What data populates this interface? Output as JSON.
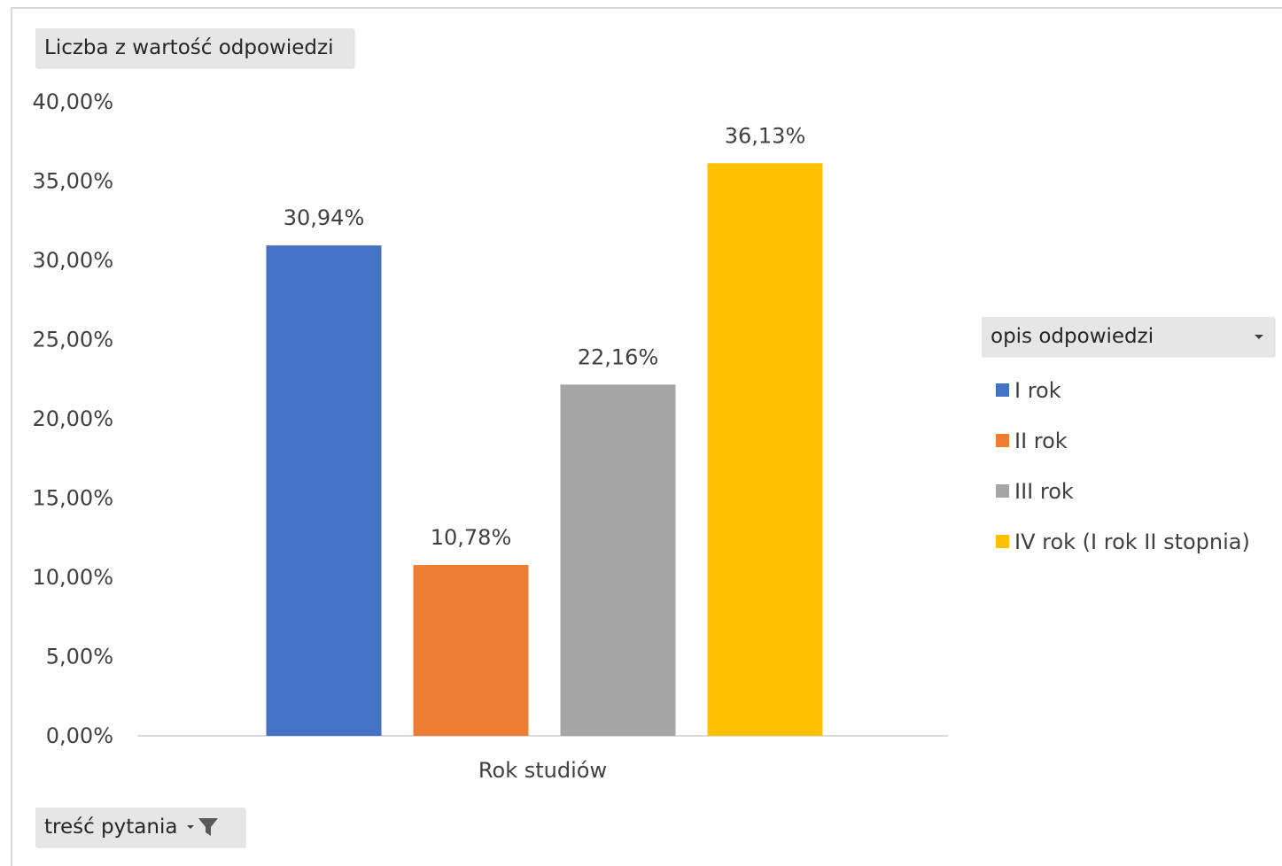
{
  "values_field": {
    "label": "Liczba z wartość odpowiedzi"
  },
  "filter_field": {
    "label": "treść pytania"
  },
  "legend": {
    "field_label": "opis odpowiedzi",
    "items": [
      {
        "label": "I rok",
        "color": "#4472c4"
      },
      {
        "label": "II rok",
        "color": "#ed7d31"
      },
      {
        "label": "III rok",
        "color": "#a5a5a5"
      },
      {
        "label": "IV rok (I rok II stopnia)",
        "color": "#ffc000"
      }
    ]
  },
  "icons": {
    "legend_dropdown": "chevron-down-icon",
    "filter": "filter-icon"
  },
  "chart_data": {
    "type": "bar",
    "categories": [
      "Rok studiów"
    ],
    "series": [
      {
        "name": "I rok",
        "values": [
          30.94
        ],
        "label": "30,94%",
        "color": "#4472c4"
      },
      {
        "name": "II rok",
        "values": [
          10.78
        ],
        "label": "10,78%",
        "color": "#ed7d31"
      },
      {
        "name": "III rok",
        "values": [
          22.16
        ],
        "label": "22,16%",
        "color": "#a5a5a5"
      },
      {
        "name": "IV rok (I rok II stopnia)",
        "values": [
          36.13
        ],
        "label": "36,13%",
        "color": "#ffc000"
      }
    ],
    "ylim": [
      0,
      40
    ],
    "yticks": [
      {
        "value": 0,
        "label": "0,00%"
      },
      {
        "value": 5,
        "label": "5,00%"
      },
      {
        "value": 10,
        "label": "10,00%"
      },
      {
        "value": 15,
        "label": "15,00%"
      },
      {
        "value": 20,
        "label": "20,00%"
      },
      {
        "value": 25,
        "label": "25,00%"
      },
      {
        "value": 30,
        "label": "30,00%"
      },
      {
        "value": 35,
        "label": "35,00%"
      },
      {
        "value": 40,
        "label": "40,00%"
      }
    ],
    "grid": false,
    "legend_position": "right"
  }
}
